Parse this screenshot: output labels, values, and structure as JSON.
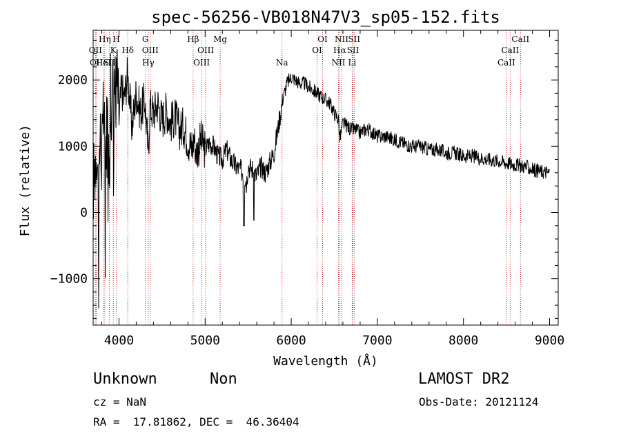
{
  "chart_data": {
    "type": "line",
    "title": "spec-56256-VB018N47V3_sp05-152.fits",
    "xlabel": "Wavelength (Å)",
    "ylabel": "Flux (relative)",
    "xlim": [
      3700,
      9100
    ],
    "ylim": [
      -1700,
      2750
    ],
    "xticks": [
      4000,
      5000,
      6000,
      7000,
      8000,
      9000
    ],
    "xtick_labels": [
      "4000",
      "5000",
      "6000",
      "7000",
      "8000",
      "9000"
    ],
    "yticks": [
      -1000,
      0,
      1000,
      2000
    ],
    "ytick_labels": [
      "−1000",
      "0",
      "1000",
      "2000"
    ],
    "grid": false,
    "series": [
      {
        "x": [
          3700,
          3720,
          3740,
          3760,
          3780,
          3800,
          3820,
          3840,
          3860,
          3880,
          3900,
          3920,
          3940,
          3960,
          3980,
          4000,
          4030,
          4060,
          4100,
          4150,
          4200,
          4250,
          4300,
          4340,
          4360,
          4400,
          4450,
          4500,
          4550,
          4600,
          4650,
          4700,
          4750,
          4800,
          4850,
          4870,
          4900,
          4950,
          5000,
          5050,
          5100,
          5150,
          5200,
          5250,
          5300,
          5350,
          5400,
          5450,
          5480,
          5500,
          5550,
          5600,
          5650,
          5700,
          5750,
          5800,
          5850,
          5900,
          5950,
          6000,
          6050,
          6100,
          6150,
          6200,
          6250,
          6300,
          6350,
          6400,
          6450,
          6500,
          6550,
          6563,
          6600,
          6650,
          6700,
          6750,
          6800,
          6850,
          6900,
          6950,
          7000,
          7100,
          7200,
          7300,
          7400,
          7500,
          7600,
          7700,
          7800,
          7900,
          8000,
          8100,
          8200,
          8300,
          8400,
          8500,
          8600,
          8700,
          8800,
          8900,
          9000
        ],
        "y": [
          400,
          700,
          1100,
          300,
          1200,
          800,
          1500,
          900,
          1400,
          1200,
          1900,
          1500,
          2300,
          1800,
          2000,
          1400,
          1900,
          1700,
          2100,
          1300,
          1800,
          1500,
          1700,
          900,
          1600,
          1500,
          1650,
          1400,
          1550,
          1350,
          1450,
          1250,
          1300,
          1100,
          950,
          1150,
          900,
          1100,
          950,
          1050,
          1000,
          850,
          800,
          950,
          800,
          700,
          650,
          600,
          450,
          700,
          650,
          550,
          700,
          600,
          750,
          900,
          1300,
          1700,
          1950,
          2050,
          2000,
          1950,
          1950,
          1900,
          1850,
          1800,
          1750,
          1700,
          1650,
          1500,
          1400,
          1100,
          1350,
          1300,
          1250,
          1250,
          1200,
          1250,
          1250,
          1200,
          1150,
          1150,
          1100,
          1050,
          1000,
          1000,
          950,
          950,
          900,
          900,
          850,
          850,
          820,
          800,
          780,
          750,
          720,
          700,
          650,
          620,
          600
        ]
      }
    ],
    "lines": [
      {
        "wavelength": 3727,
        "label": "OII",
        "row": 1
      },
      {
        "wavelength": 3737,
        "label": "OII",
        "row": 2
      },
      {
        "wavelength": 3820,
        "label": "HeI",
        "row": 2
      },
      {
        "wavelength": 3835,
        "label": "Hη",
        "row": 0
      },
      {
        "wavelength": 3889,
        "label": "SII",
        "row": 2
      },
      {
        "wavelength": 3934,
        "label": "K",
        "row": 1
      },
      {
        "wavelength": 3969,
        "label": "H",
        "row": 0
      },
      {
        "wavelength": 4102,
        "label": "Hδ",
        "row": 1
      },
      {
        "wavelength": 4306,
        "label": "G",
        "row": 0
      },
      {
        "wavelength": 4340,
        "label": "Hγ",
        "row": 2
      },
      {
        "wavelength": 4363,
        "label": "OIII",
        "row": 1
      },
      {
        "wavelength": 4861,
        "label": "Hβ",
        "row": 0
      },
      {
        "wavelength": 4959,
        "label": "OIII",
        "row": 2
      },
      {
        "wavelength": 5007,
        "label": "OIII",
        "row": 1
      },
      {
        "wavelength": 5175,
        "label": "Mg",
        "row": 0
      },
      {
        "wavelength": 5893,
        "label": "Na",
        "row": 2
      },
      {
        "wavelength": 6300,
        "label": "OI",
        "row": 1
      },
      {
        "wavelength": 6364,
        "label": "OI",
        "row": 0
      },
      {
        "wavelength": 6548,
        "label": "NII",
        "row": 2
      },
      {
        "wavelength": 6563,
        "label": "Hα",
        "row": 1
      },
      {
        "wavelength": 6584,
        "label": "NII",
        "row": 0
      },
      {
        "wavelength": 6708,
        "label": "Li",
        "row": 2
      },
      {
        "wavelength": 6717,
        "label": "SII",
        "row": 1
      },
      {
        "wavelength": 6731,
        "label": "SII",
        "row": 0
      },
      {
        "wavelength": 8498,
        "label": "CaII",
        "row": 2
      },
      {
        "wavelength": 8542,
        "label": "CaII",
        "row": 1
      },
      {
        "wavelength": 8662,
        "label": "CaII",
        "row": 0
      }
    ],
    "colors": {
      "spectrum": "#000000",
      "line_markers": "#c62828"
    }
  },
  "info": {
    "classification": "Unknown",
    "subclass": "Non",
    "survey": "LAMOST DR2",
    "cz": "cz = NaN",
    "obs_date": "Obs-Date: 20121124",
    "coords": "RA =  17.81862, DEC =  46.36404"
  }
}
